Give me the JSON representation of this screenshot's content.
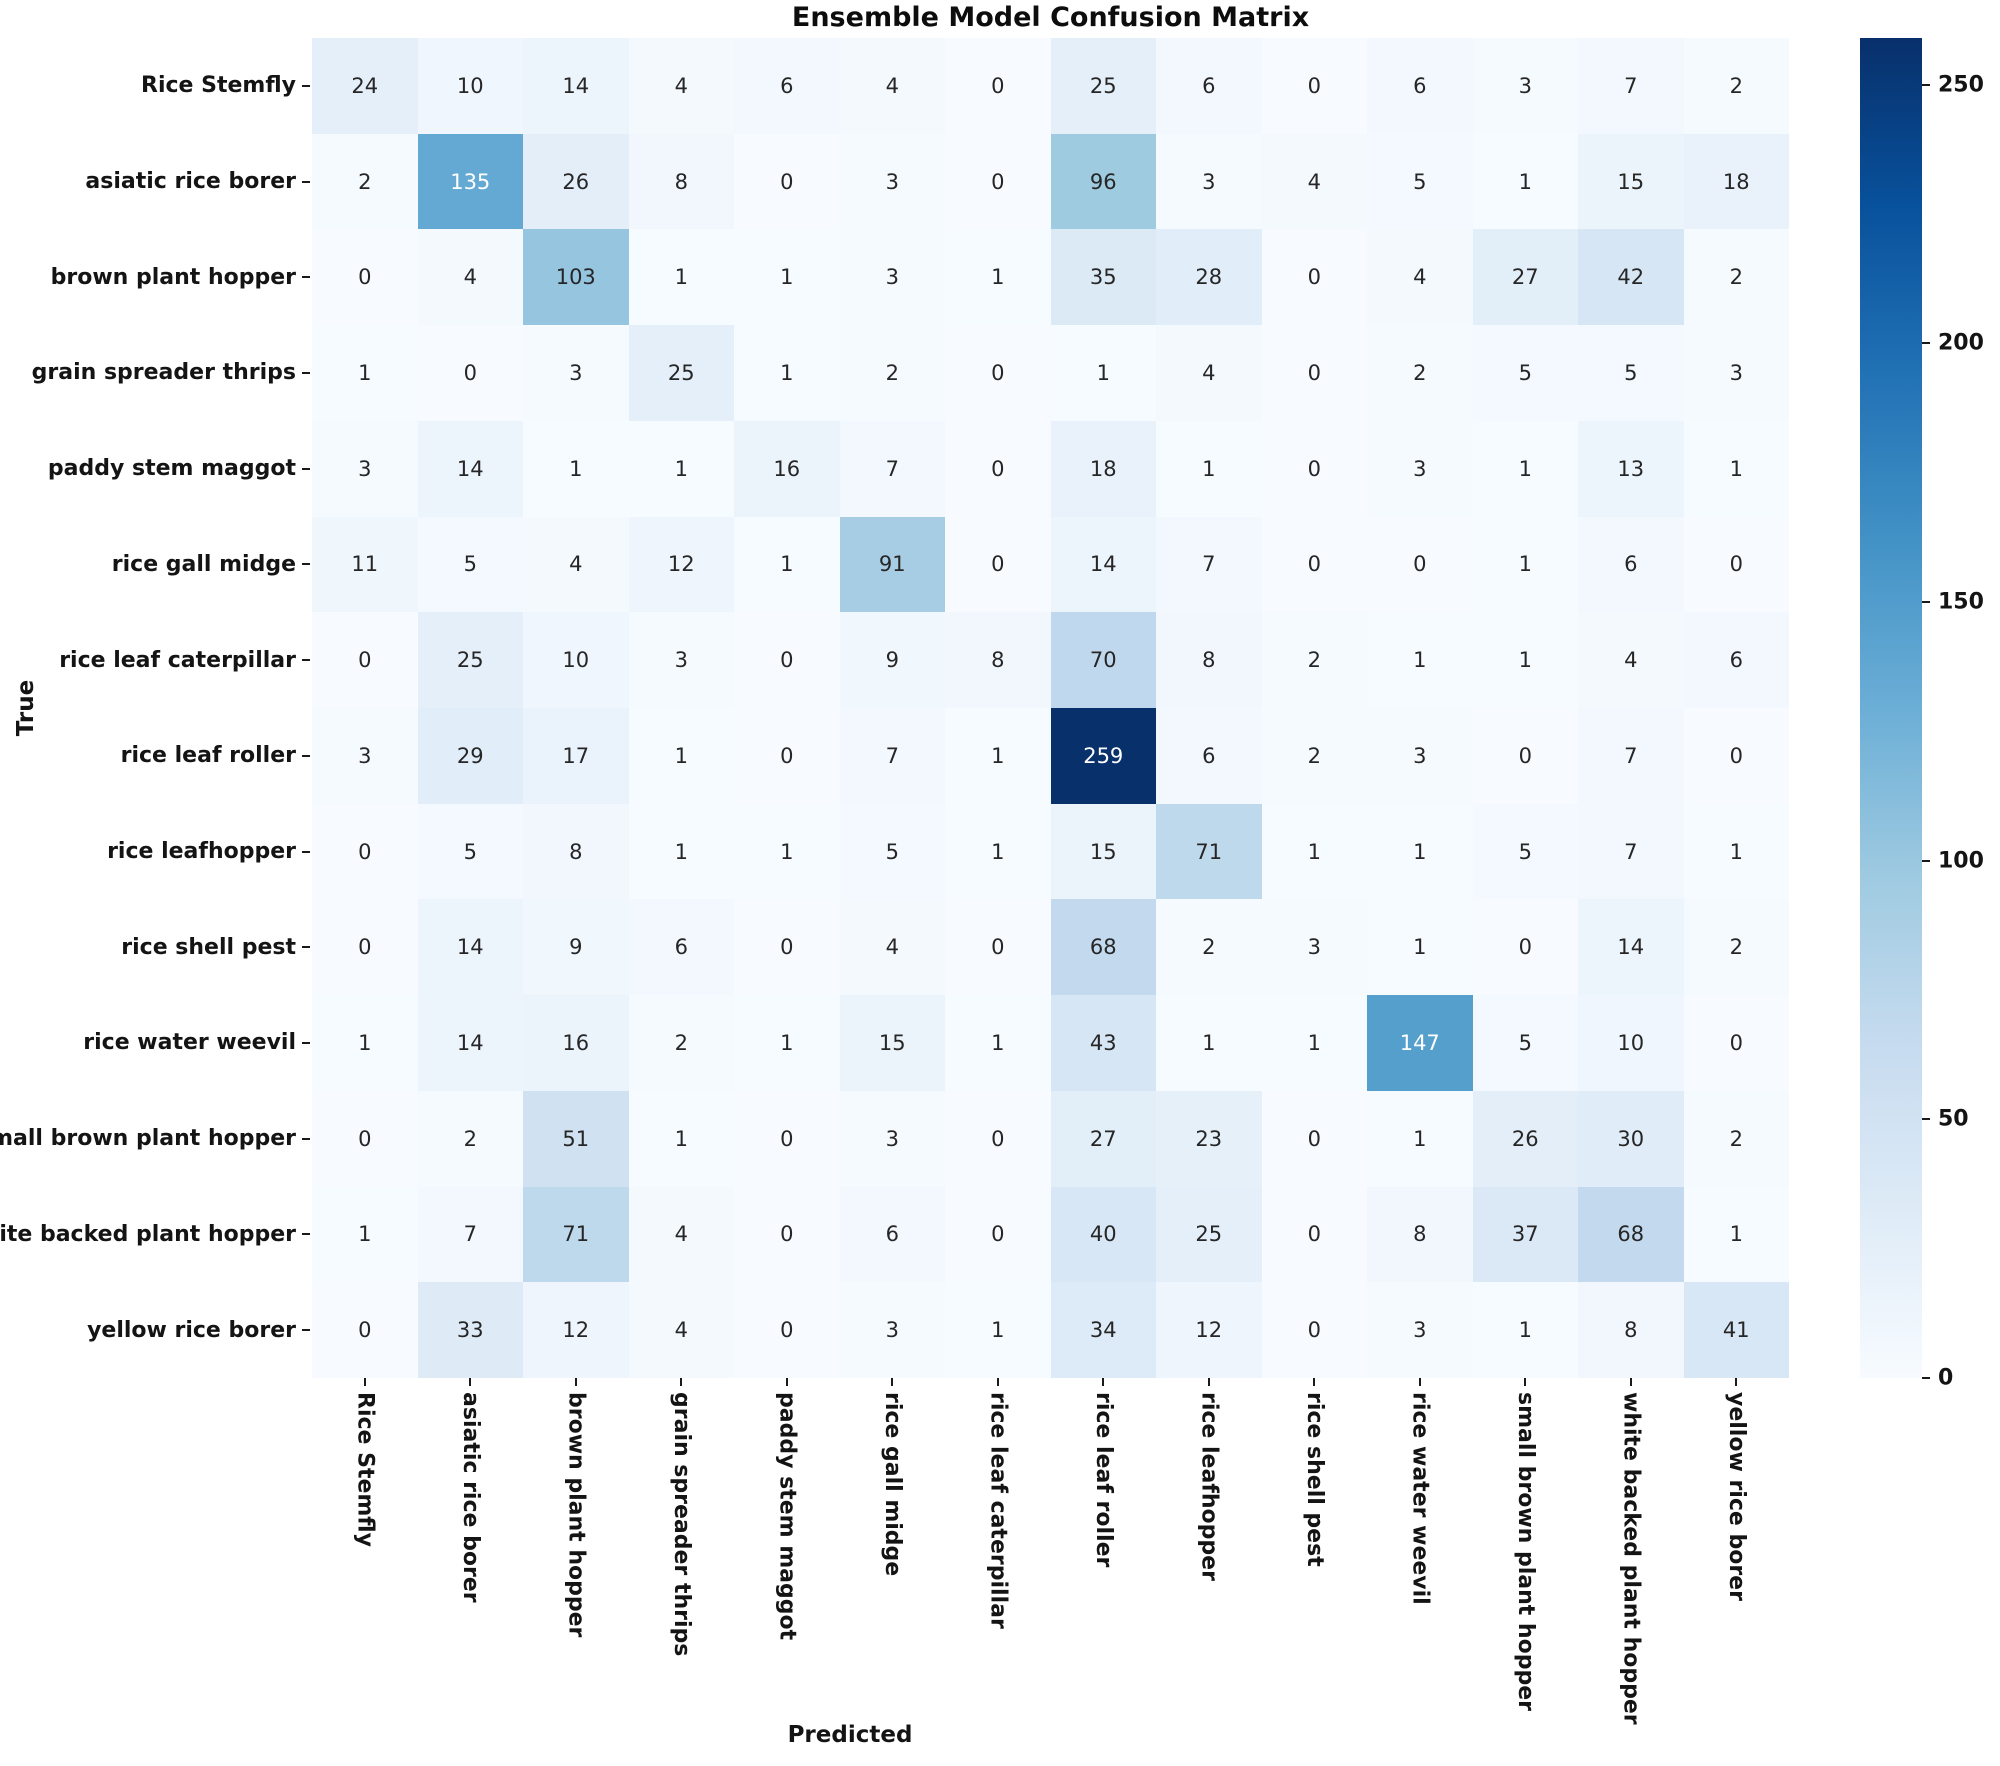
{
  "chart_data": {
    "type": "heatmap",
    "title": "Ensemble Model Confusion Matrix",
    "xlabel": "Predicted",
    "ylabel": "True",
    "categories": [
      "Rice Stemfly",
      "asiatic rice borer",
      "brown plant hopper",
      "grain spreader thrips",
      "paddy stem maggot",
      "rice gall midge",
      "rice leaf caterpillar",
      "rice leaf roller",
      "rice leafhopper",
      "rice shell pest",
      "rice water weevil",
      "small brown plant hopper",
      "white backed plant hopper",
      "yellow rice borer"
    ],
    "matrix": [
      [
        24,
        10,
        14,
        4,
        6,
        4,
        0,
        25,
        6,
        0,
        6,
        3,
        7,
        2
      ],
      [
        2,
        135,
        26,
        8,
        0,
        3,
        0,
        96,
        3,
        4,
        5,
        1,
        15,
        18
      ],
      [
        0,
        4,
        103,
        1,
        1,
        3,
        1,
        35,
        28,
        0,
        4,
        27,
        42,
        2
      ],
      [
        1,
        0,
        3,
        25,
        1,
        2,
        0,
        1,
        4,
        0,
        2,
        5,
        5,
        3
      ],
      [
        3,
        14,
        1,
        1,
        16,
        7,
        0,
        18,
        1,
        0,
        3,
        1,
        13,
        1
      ],
      [
        11,
        5,
        4,
        12,
        1,
        91,
        0,
        14,
        7,
        0,
        0,
        1,
        6,
        0
      ],
      [
        0,
        25,
        10,
        3,
        0,
        9,
        8,
        70,
        8,
        2,
        1,
        1,
        4,
        6
      ],
      [
        3,
        29,
        17,
        1,
        0,
        7,
        1,
        259,
        6,
        2,
        3,
        0,
        7,
        0
      ],
      [
        0,
        5,
        8,
        1,
        1,
        5,
        1,
        15,
        71,
        1,
        1,
        5,
        7,
        1
      ],
      [
        0,
        14,
        9,
        6,
        0,
        4,
        0,
        68,
        2,
        3,
        1,
        0,
        14,
        2
      ],
      [
        1,
        14,
        16,
        2,
        1,
        15,
        1,
        43,
        1,
        1,
        147,
        5,
        10,
        0
      ],
      [
        0,
        2,
        51,
        1,
        0,
        3,
        0,
        27,
        23,
        0,
        1,
        26,
        30,
        2
      ],
      [
        1,
        7,
        71,
        4,
        0,
        6,
        0,
        40,
        25,
        0,
        8,
        37,
        68,
        1
      ],
      [
        0,
        33,
        12,
        4,
        0,
        3,
        1,
        34,
        12,
        0,
        3,
        1,
        8,
        41
      ]
    ],
    "vmin": 0,
    "vmax": 259,
    "colormap": "Blues",
    "colormap_stops": [
      "#f7fbff",
      "#deebf7",
      "#c6dbef",
      "#9ecae1",
      "#6baed6",
      "#4292c6",
      "#2171b5",
      "#08519c",
      "#08306b"
    ],
    "colorbar_ticks": [
      0,
      50,
      100,
      150,
      200,
      250
    ],
    "annotation_colors": {
      "dark_text": "#262626",
      "light_text": "#ffffff"
    },
    "legend_position": "right-colorbar",
    "grid_on": false
  }
}
